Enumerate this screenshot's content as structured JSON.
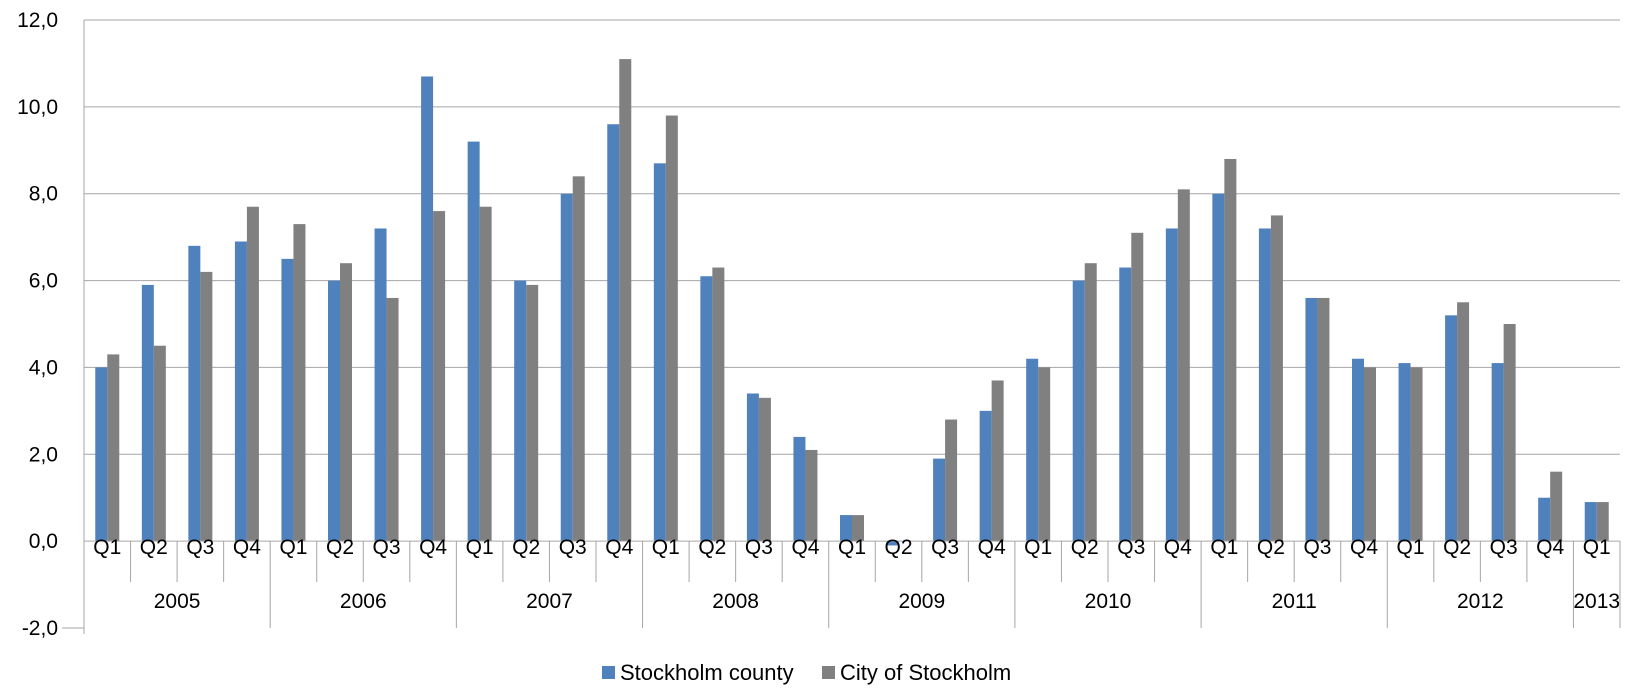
{
  "chart_data": {
    "type": "bar",
    "categories": [
      "Q1",
      "Q2",
      "Q3",
      "Q4",
      "Q1",
      "Q2",
      "Q3",
      "Q4",
      "Q1",
      "Q2",
      "Q3",
      "Q4",
      "Q1",
      "Q2",
      "Q3",
      "Q4",
      "Q1",
      "Q2",
      "Q3",
      "Q4",
      "Q1",
      "Q2",
      "Q3",
      "Q4",
      "Q1",
      "Q2",
      "Q3",
      "Q4",
      "Q1",
      "Q2",
      "Q3",
      "Q4",
      "Q1"
    ],
    "years": [
      {
        "label": "2005",
        "quarters": 4
      },
      {
        "label": "2006",
        "quarters": 4
      },
      {
        "label": "2007",
        "quarters": 4
      },
      {
        "label": "2008",
        "quarters": 4
      },
      {
        "label": "2009",
        "quarters": 4
      },
      {
        "label": "2010",
        "quarters": 4
      },
      {
        "label": "2011",
        "quarters": 4
      },
      {
        "label": "2012",
        "quarters": 4
      },
      {
        "label": "2013",
        "quarters": 1
      }
    ],
    "series": [
      {
        "name": "Stockholm county",
        "color": "#4F81BD",
        "values": [
          4.0,
          5.9,
          6.8,
          6.9,
          6.5,
          6.0,
          7.2,
          10.7,
          9.2,
          6.0,
          8.0,
          9.6,
          8.7,
          6.1,
          3.4,
          2.4,
          0.6,
          -0.1,
          1.9,
          3.0,
          4.2,
          6.0,
          6.3,
          7.2,
          8.0,
          7.2,
          5.6,
          4.2,
          4.1,
          5.2,
          4.1,
          1.0,
          0.9
        ]
      },
      {
        "name": "City of Stockholm",
        "color": "#808080",
        "values": [
          4.3,
          4.5,
          6.2,
          7.7,
          7.3,
          6.4,
          5.6,
          7.6,
          7.7,
          5.9,
          8.4,
          11.1,
          9.8,
          6.3,
          3.3,
          2.1,
          0.6,
          0.0,
          2.8,
          3.7,
          4.0,
          6.4,
          7.1,
          8.1,
          8.8,
          7.5,
          5.6,
          4.0,
          4.0,
          5.5,
          5.0,
          1.6,
          0.9
        ]
      }
    ],
    "yticks": [
      "12,0",
      "10,0",
      "8,0",
      "6,0",
      "4,0",
      "2,0",
      "0,0",
      "-2,0"
    ],
    "ylim": [
      -2,
      12
    ],
    "grid": true,
    "legend_position": "bottom-center",
    "title": "",
    "xlabel": "",
    "ylabel": ""
  }
}
